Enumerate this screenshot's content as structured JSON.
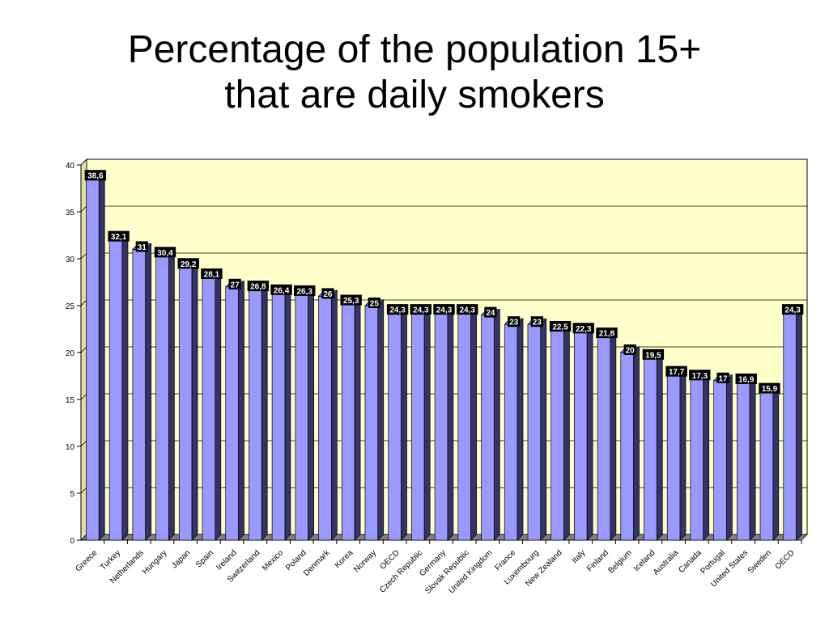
{
  "title_lines": [
    "Percentage of the population 15+",
    "that are daily smokers"
  ],
  "colors": {
    "plot_bg": "#FFFFCC",
    "bar_front": "#9999FF",
    "bar_side": "#333366",
    "bar_top": "#6666CC",
    "label_bg": "#000000",
    "label_text": "#FFFFFF",
    "gridline": "#000000"
  },
  "chart_data": {
    "type": "bar",
    "style": "3d-column",
    "categories": [
      "Greece",
      "Turkey",
      "Netherlands",
      "Hungary",
      "Japan",
      "Spain",
      "Ireland",
      "Switzerland",
      "Mexico",
      "Poland",
      "Denmark",
      "Korea",
      "Norway",
      "OECD",
      "Czech Republic",
      "Germany",
      "Slovak Republic",
      "United Kingdom",
      "France",
      "Luxembourg",
      "New Zealand",
      "Italy",
      "Finland",
      "Belgium",
      "Iceland",
      "Australia",
      "Canada",
      "Portugal",
      "United States",
      "Sweden",
      "OECD"
    ],
    "values": [
      38.6,
      32.1,
      31,
      30.4,
      29.2,
      28.1,
      27,
      26.8,
      26.4,
      26.3,
      26,
      25.3,
      25,
      24.3,
      24.3,
      24.3,
      24.3,
      24,
      23,
      23,
      22.5,
      22.3,
      21.8,
      20,
      19.5,
      17.7,
      17.3,
      17,
      16.9,
      15.9,
      24.3
    ],
    "data_labels": [
      "38,6",
      "32,1",
      "31",
      "30,4",
      "29,2",
      "28,1",
      "27",
      "26,8",
      "26,4",
      "26,3",
      "26",
      "25,3",
      "25",
      "24,3",
      "24,3",
      "24,3",
      "24,3",
      "24",
      "23",
      "23",
      "22,5",
      "22,3",
      "21,8",
      "20",
      "19,5",
      "17,7",
      "17,3",
      "17",
      "16,9",
      "15,9",
      "24,3"
    ],
    "y_ticks": [
      "0",
      "5",
      "10",
      "15",
      "20",
      "25",
      "30",
      "35",
      "40"
    ],
    "ylim": [
      0,
      40
    ],
    "y_major_unit": 5,
    "grid": true,
    "legend": false
  }
}
